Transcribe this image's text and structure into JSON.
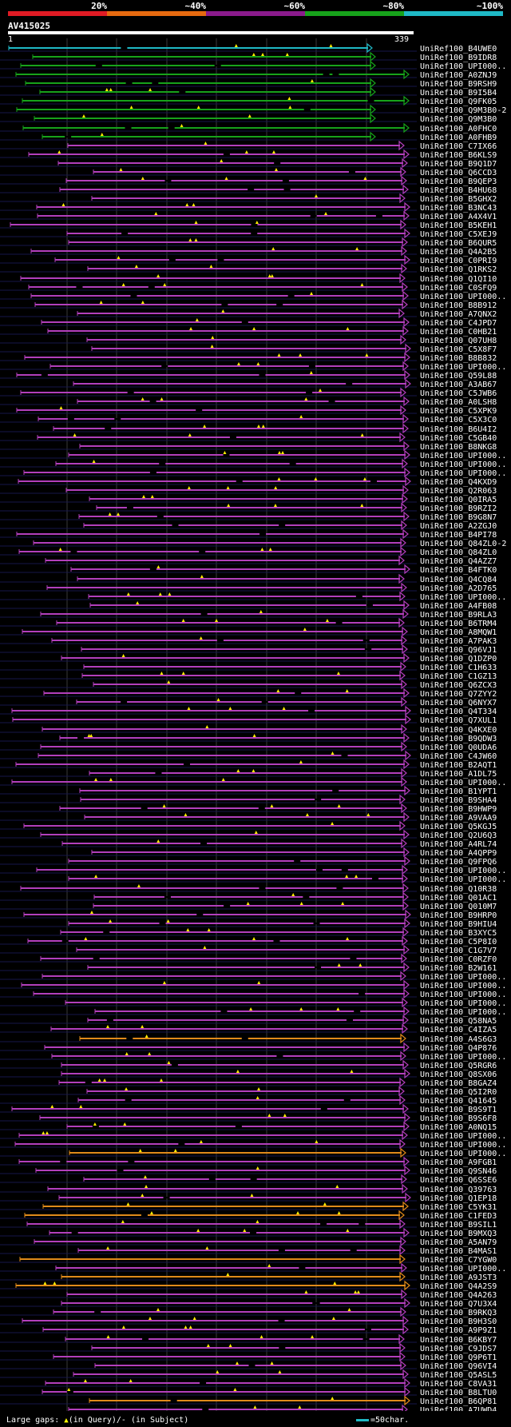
{
  "header": {
    "identity_legend": [
      {
        "label": "20%",
        "color": "#e01b24"
      },
      {
        "label": "~40%",
        "color": "#e66a10"
      },
      {
        "label": "~60%",
        "color": "#8b1b8c"
      },
      {
        "label": "~80%",
        "color": "#17a21b"
      },
      {
        "label": "~100%",
        "color": "#1fb9c6"
      }
    ],
    "query_name": "AV415025",
    "query_start": "1",
    "query_end": "339"
  },
  "colors": {
    "cyan": "#1fb9c6",
    "green": "#17a21b",
    "magenta": "#b23fbc",
    "orange": "#e08a1a",
    "gap": "#ffee00",
    "grid": "#3a3a3a",
    "row_line": "#16164a"
  },
  "hits": [
    {
      "name": "UniRef100_B4UWE0",
      "color": "cyan"
    },
    {
      "name": "UniRef100_B9IDR8",
      "color": "green"
    },
    {
      "name": "UniRef100_UPI000..",
      "color": "green"
    },
    {
      "name": "UniRef100_A0ZNJ9",
      "color": "green"
    },
    {
      "name": "UniRef100_B9RSH9",
      "color": "green"
    },
    {
      "name": "UniRef100_B9I5B4",
      "color": "green"
    },
    {
      "name": "UniRef100_Q9FK05",
      "color": "green"
    },
    {
      "name": "UniRef100_Q9M3B0-2",
      "color": "green"
    },
    {
      "name": "UniRef100_Q9M3B0",
      "color": "green"
    },
    {
      "name": "UniRef100_A0FHC0",
      "color": "green"
    },
    {
      "name": "UniRef100_A0FHB9",
      "color": "green"
    },
    {
      "name": "UniRef100_C7IX66",
      "color": "magenta"
    },
    {
      "name": "UniRef100_B6KLS9",
      "color": "magenta"
    },
    {
      "name": "UniRef100_B9Q1D7",
      "color": "magenta"
    },
    {
      "name": "UniRef100_Q6CCD3",
      "color": "magenta"
    },
    {
      "name": "UniRef100_B9QEP3",
      "color": "magenta"
    },
    {
      "name": "UniRef100_B4HU68",
      "color": "magenta"
    },
    {
      "name": "UniRef100_B5GHX2",
      "color": "magenta"
    },
    {
      "name": "UniRef100_B3NC43",
      "color": "magenta"
    },
    {
      "name": "UniRef100_A4X4V1",
      "color": "magenta"
    },
    {
      "name": "UniRef100_B5KEH1",
      "color": "magenta"
    },
    {
      "name": "UniRef100_C5XEJ9",
      "color": "magenta"
    },
    {
      "name": "UniRef100_B6QUR5",
      "color": "magenta"
    },
    {
      "name": "UniRef100_Q4A2B5",
      "color": "magenta"
    },
    {
      "name": "UniRef100_C0PRI9",
      "color": "magenta"
    },
    {
      "name": "UniRef100_Q1RKS2",
      "color": "magenta"
    },
    {
      "name": "UniRef100_Q1QI10",
      "color": "magenta"
    },
    {
      "name": "UniRef100_C0SFQ9",
      "color": "magenta"
    },
    {
      "name": "UniRef100_UPI000..",
      "color": "magenta"
    },
    {
      "name": "UniRef100_B8B912",
      "color": "magenta"
    },
    {
      "name": "UniRef100_A7QNX2",
      "color": "magenta"
    },
    {
      "name": "UniRef100_C4JPD7",
      "color": "magenta"
    },
    {
      "name": "UniRef100_C0HB21",
      "color": "magenta"
    },
    {
      "name": "UniRef100_Q07UH8",
      "color": "magenta"
    },
    {
      "name": "UniRef100_C5X8F7",
      "color": "magenta"
    },
    {
      "name": "UniRef100_B8B832",
      "color": "magenta"
    },
    {
      "name": "UniRef100_UPI000..",
      "color": "magenta"
    },
    {
      "name": "UniRef100_Q59L88",
      "color": "magenta"
    },
    {
      "name": "UniRef100_A3AB67",
      "color": "magenta"
    },
    {
      "name": "UniRef100_C5JWB6",
      "color": "magenta"
    },
    {
      "name": "UniRef100_A0LSH8",
      "color": "magenta"
    },
    {
      "name": "UniRef100_C5XPK9",
      "color": "magenta"
    },
    {
      "name": "UniRef100_C5X3C0",
      "color": "magenta"
    },
    {
      "name": "UniRef100_B6U4I2",
      "color": "magenta"
    },
    {
      "name": "UniRef100_C5GB40",
      "color": "magenta"
    },
    {
      "name": "UniRef100_B8NKG8",
      "color": "magenta"
    },
    {
      "name": "UniRef100_UPI000..",
      "color": "magenta"
    },
    {
      "name": "UniRef100_UPI000..",
      "color": "magenta"
    },
    {
      "name": "UniRef100_UPI000..",
      "color": "magenta"
    },
    {
      "name": "UniRef100_Q4KXD9",
      "color": "magenta"
    },
    {
      "name": "UniRef100_Q2R063",
      "color": "magenta"
    },
    {
      "name": "UniRef100_Q0IRA5",
      "color": "magenta"
    },
    {
      "name": "UniRef100_B9RZI2",
      "color": "magenta"
    },
    {
      "name": "UniRef100_B9G8N7",
      "color": "magenta"
    },
    {
      "name": "UniRef100_A2ZGJ0",
      "color": "magenta"
    },
    {
      "name": "UniRef100_B4PI78",
      "color": "magenta"
    },
    {
      "name": "UniRef100_Q84ZL0-2",
      "color": "magenta"
    },
    {
      "name": "UniRef100_Q84ZL0",
      "color": "magenta"
    },
    {
      "name": "UniRef100_Q4AZZ7",
      "color": "magenta"
    },
    {
      "name": "UniRef100_B4FTK0",
      "color": "magenta"
    },
    {
      "name": "UniRef100_Q4CQ84",
      "color": "magenta"
    },
    {
      "name": "UniRef100_A2D765",
      "color": "magenta"
    },
    {
      "name": "UniRef100_UPI000..",
      "color": "magenta"
    },
    {
      "name": "UniRef100_A4FB08",
      "color": "magenta"
    },
    {
      "name": "UniRef100_B9RLA3",
      "color": "magenta"
    },
    {
      "name": "UniRef100_B6TRM4",
      "color": "magenta"
    },
    {
      "name": "UniRef100_A8MQW1",
      "color": "magenta"
    },
    {
      "name": "UniRef100_A7PAK3",
      "color": "magenta"
    },
    {
      "name": "UniRef100_Q96VJ1",
      "color": "magenta"
    },
    {
      "name": "UniRef100_Q1DZP0",
      "color": "magenta"
    },
    {
      "name": "UniRef100_C1H633",
      "color": "magenta"
    },
    {
      "name": "UniRef100_C1GZ13",
      "color": "magenta"
    },
    {
      "name": "UniRef100_Q6ZCX3",
      "color": "magenta"
    },
    {
      "name": "UniRef100_Q7ZYY2",
      "color": "magenta"
    },
    {
      "name": "UniRef100_Q6NYX7",
      "color": "magenta"
    },
    {
      "name": "UniRef100_Q4T334",
      "color": "magenta"
    },
    {
      "name": "UniRef100_Q7XUL1",
      "color": "magenta"
    },
    {
      "name": "UniRef100_Q4KXE0",
      "color": "magenta"
    },
    {
      "name": "UniRef100_B9QDW3",
      "color": "magenta"
    },
    {
      "name": "UniRef100_Q0UDA6",
      "color": "magenta"
    },
    {
      "name": "UniRef100_C4JW60",
      "color": "magenta"
    },
    {
      "name": "UniRef100_B2AQT1",
      "color": "magenta"
    },
    {
      "name": "UniRef100_A1DL75",
      "color": "magenta"
    },
    {
      "name": "UniRef100_UPI000..",
      "color": "magenta"
    },
    {
      "name": "UniRef100_B1YPT1",
      "color": "magenta"
    },
    {
      "name": "UniRef100_B9SHA4",
      "color": "magenta"
    },
    {
      "name": "UniRef100_B9HWP9",
      "color": "magenta"
    },
    {
      "name": "UniRef100_A9VAA9",
      "color": "magenta"
    },
    {
      "name": "UniRef100_Q5KGJ5",
      "color": "magenta"
    },
    {
      "name": "UniRef100_Q2U6Q3",
      "color": "magenta"
    },
    {
      "name": "UniRef100_A4RL74",
      "color": "magenta"
    },
    {
      "name": "UniRef100_A4QPP9",
      "color": "magenta"
    },
    {
      "name": "UniRef100_Q9FPQ6",
      "color": "magenta"
    },
    {
      "name": "UniRef100_UPI000..",
      "color": "magenta"
    },
    {
      "name": "UniRef100_UPI000..",
      "color": "magenta"
    },
    {
      "name": "UniRef100_Q10R38",
      "color": "magenta"
    },
    {
      "name": "UniRef100_Q01AC1",
      "color": "magenta"
    },
    {
      "name": "UniRef100_Q010M7",
      "color": "magenta"
    },
    {
      "name": "UniRef100_B9HRP0",
      "color": "magenta"
    },
    {
      "name": "UniRef100_B9HIU4",
      "color": "magenta"
    },
    {
      "name": "UniRef100_B3XYC5",
      "color": "magenta"
    },
    {
      "name": "UniRef100_C5P8I0",
      "color": "magenta"
    },
    {
      "name": "UniRef100_C1G7V7",
      "color": "magenta"
    },
    {
      "name": "UniRef100_C0RZF0",
      "color": "magenta"
    },
    {
      "name": "UniRef100_B2W161",
      "color": "magenta"
    },
    {
      "name": "UniRef100_UPI000..",
      "color": "magenta"
    },
    {
      "name": "UniRef100_UPI000..",
      "color": "magenta"
    },
    {
      "name": "UniRef100_UPI000..",
      "color": "magenta"
    },
    {
      "name": "UniRef100_UPI000..",
      "color": "magenta"
    },
    {
      "name": "UniRef100_UPI000..",
      "color": "magenta"
    },
    {
      "name": "UniRef100_Q58NA5",
      "color": "magenta"
    },
    {
      "name": "UniRef100_C4IZA5",
      "color": "magenta"
    },
    {
      "name": "UniRef100_A4S6G3",
      "color": "orange"
    },
    {
      "name": "UniRef100_Q4P876",
      "color": "magenta"
    },
    {
      "name": "UniRef100_UPI000..",
      "color": "magenta"
    },
    {
      "name": "UniRef100_Q5RGR6",
      "color": "magenta"
    },
    {
      "name": "UniRef100_Q8SX06",
      "color": "magenta"
    },
    {
      "name": "UniRef100_B8GAZ4",
      "color": "magenta"
    },
    {
      "name": "UniRef100_Q5I2R0",
      "color": "magenta"
    },
    {
      "name": "UniRef100_Q41645",
      "color": "magenta"
    },
    {
      "name": "UniRef100_B9S9T1",
      "color": "magenta"
    },
    {
      "name": "UniRef100_B9S6F8",
      "color": "magenta"
    },
    {
      "name": "UniRef100_A0NQ15",
      "color": "magenta"
    },
    {
      "name": "UniRef100_UPI000..",
      "color": "magenta"
    },
    {
      "name": "UniRef100_UPI000..",
      "color": "magenta"
    },
    {
      "name": "UniRef100_UPI000..",
      "color": "orange"
    },
    {
      "name": "UniRef100_A9FGB1",
      "color": "magenta"
    },
    {
      "name": "UniRef100_Q9SN46",
      "color": "magenta"
    },
    {
      "name": "UniRef100_Q6SSE6",
      "color": "magenta"
    },
    {
      "name": "UniRef100_Q39763",
      "color": "magenta"
    },
    {
      "name": "UniRef100_Q1EP18",
      "color": "magenta"
    },
    {
      "name": "UniRef100_C5YK31",
      "color": "orange"
    },
    {
      "name": "UniRef100_C1FED3",
      "color": "orange"
    },
    {
      "name": "UniRef100_B9SIL1",
      "color": "magenta"
    },
    {
      "name": "UniRef100_B9MXQ3",
      "color": "magenta"
    },
    {
      "name": "UniRef100_A5AN79",
      "color": "magenta"
    },
    {
      "name": "UniRef100_B4MAS1",
      "color": "magenta"
    },
    {
      "name": "UniRef100_C7YGW0",
      "color": "orange"
    },
    {
      "name": "UniRef100_UPI000..",
      "color": "magenta"
    },
    {
      "name": "UniRef100_A9JST3",
      "color": "orange"
    },
    {
      "name": "UniRef100_Q4A2S9",
      "color": "orange"
    },
    {
      "name": "UniRef100_Q4A263",
      "color": "magenta"
    },
    {
      "name": "UniRef100_Q7U3X4",
      "color": "magenta"
    },
    {
      "name": "UniRef100_B9RKQ3",
      "color": "magenta"
    },
    {
      "name": "UniRef100_B9H3S0",
      "color": "magenta"
    },
    {
      "name": "UniRef100_A9P9Z1",
      "color": "magenta"
    },
    {
      "name": "UniRef100_B6KBY7",
      "color": "magenta"
    },
    {
      "name": "UniRef100_C9JDS7",
      "color": "magenta"
    },
    {
      "name": "UniRef100_Q9P6T1",
      "color": "magenta"
    },
    {
      "name": "UniRef100_Q96VI4",
      "color": "magenta"
    },
    {
      "name": "UniRef100_Q5ASL5",
      "color": "magenta"
    },
    {
      "name": "UniRef100_C8VA31",
      "color": "magenta"
    },
    {
      "name": "UniRef100_B8LTU0",
      "color": "magenta"
    },
    {
      "name": "UniRef100_B6QP81",
      "color": "orange"
    },
    {
      "name": "UniRef100_A7UWD4",
      "color": "magenta"
    }
  ],
  "footer": {
    "gaps_label": "Large gaps:",
    "gaps_query": "(in Query)/",
    "gaps_subject": "- (in Subject)",
    "scale_label": "=50char."
  }
}
